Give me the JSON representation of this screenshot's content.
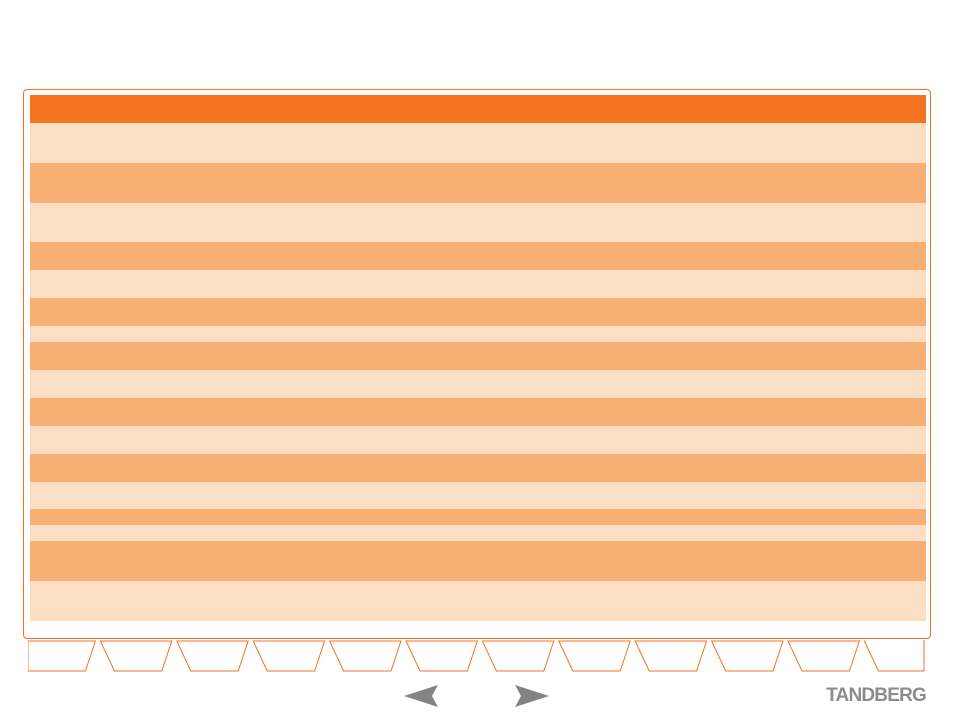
{
  "table": {
    "header": "",
    "rows": [
      {
        "tone": "light",
        "text": ""
      },
      {
        "tone": "dark",
        "text": ""
      },
      {
        "tone": "light",
        "text": ""
      },
      {
        "tone": "dark",
        "text": ""
      },
      {
        "tone": "light",
        "text": ""
      },
      {
        "tone": "dark",
        "text": ""
      },
      {
        "tone": "light",
        "text": ""
      },
      {
        "tone": "dark",
        "text": ""
      },
      {
        "tone": "light",
        "text": ""
      },
      {
        "tone": "dark",
        "text": ""
      },
      {
        "tone": "light",
        "text": ""
      },
      {
        "tone": "dark",
        "text": ""
      },
      {
        "tone": "light",
        "text": ""
      },
      {
        "tone": "dark",
        "text": ""
      },
      {
        "tone": "light",
        "text": ""
      },
      {
        "tone": "dark",
        "text": ""
      },
      {
        "tone": "light",
        "text": ""
      }
    ]
  },
  "tabs": {
    "count": 12,
    "active_index": 11,
    "labels": [
      "",
      "",
      "",
      "",
      "",
      "",
      "",
      "",
      "",
      "",
      "",
      ""
    ]
  },
  "navigation": {
    "prev_icon": "arrow-left-icon",
    "next_icon": "arrow-right-icon"
  },
  "brand": {
    "logo_text": "TANDBERG",
    "color": "#8d8b8d"
  },
  "colors": {
    "accent": "#f47320",
    "row_light": "#fcdec5",
    "row_dark": "#f8af74",
    "arrow": "#848284"
  }
}
